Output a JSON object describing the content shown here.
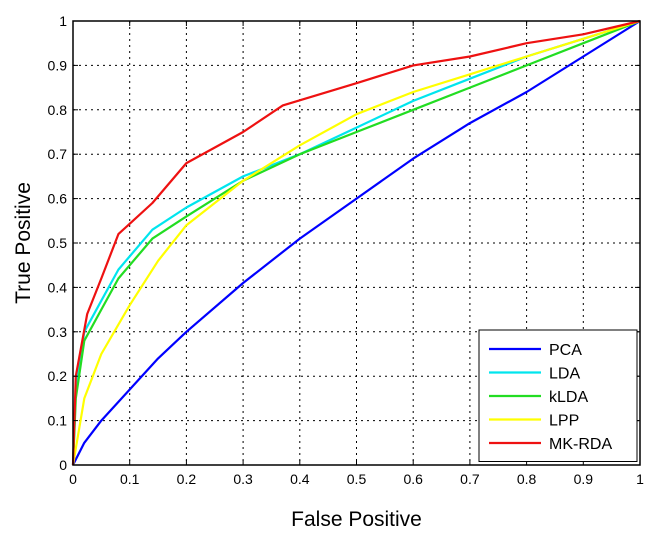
{
  "chart_data": {
    "type": "line",
    "xlabel": "False Positive",
    "ylabel": "True Positive",
    "xlim": [
      0,
      1
    ],
    "ylim": [
      0,
      1
    ],
    "x_ticks": [
      "0",
      "0.1",
      "0.2",
      "0.3",
      "0.4",
      "0.5",
      "0.6",
      "0.7",
      "0.8",
      "0.9",
      "1"
    ],
    "y_ticks": [
      "0",
      "0.1",
      "0.2",
      "0.3",
      "0.4",
      "0.5",
      "0.6",
      "0.7",
      "0.8",
      "0.9",
      "1"
    ],
    "grid": true,
    "legend_position": "bottom-right",
    "series": [
      {
        "name": "PCA",
        "color": "#0000ff",
        "points": [
          [
            0,
            0
          ],
          [
            0.02,
            0.05
          ],
          [
            0.05,
            0.1
          ],
          [
            0.1,
            0.17
          ],
          [
            0.15,
            0.24
          ],
          [
            0.2,
            0.3
          ],
          [
            0.3,
            0.41
          ],
          [
            0.4,
            0.51
          ],
          [
            0.5,
            0.6
          ],
          [
            0.6,
            0.69
          ],
          [
            0.7,
            0.77
          ],
          [
            0.8,
            0.84
          ],
          [
            0.9,
            0.92
          ],
          [
            1,
            1
          ]
        ]
      },
      {
        "name": "LDA",
        "color": "#00e5ee",
        "points": [
          [
            0,
            0
          ],
          [
            0.005,
            0.17
          ],
          [
            0.02,
            0.3
          ],
          [
            0.05,
            0.37
          ],
          [
            0.08,
            0.44
          ],
          [
            0.14,
            0.53
          ],
          [
            0.2,
            0.58
          ],
          [
            0.3,
            0.65
          ],
          [
            0.4,
            0.7
          ],
          [
            0.5,
            0.76
          ],
          [
            0.6,
            0.82
          ],
          [
            0.7,
            0.87
          ],
          [
            0.8,
            0.92
          ],
          [
            0.9,
            0.96
          ],
          [
            1,
            1
          ]
        ]
      },
      {
        "name": "kLDA",
        "color": "#22dd22",
        "points": [
          [
            0,
            0
          ],
          [
            0.005,
            0.15
          ],
          [
            0.02,
            0.28
          ],
          [
            0.05,
            0.35
          ],
          [
            0.08,
            0.42
          ],
          [
            0.14,
            0.51
          ],
          [
            0.2,
            0.56
          ],
          [
            0.3,
            0.64
          ],
          [
            0.4,
            0.7
          ],
          [
            0.5,
            0.75
          ],
          [
            0.6,
            0.8
          ],
          [
            0.7,
            0.85
          ],
          [
            0.8,
            0.9
          ],
          [
            0.9,
            0.95
          ],
          [
            1,
            1
          ]
        ]
      },
      {
        "name": "LPP",
        "color": "#ffff00",
        "points": [
          [
            0,
            0
          ],
          [
            0.02,
            0.15
          ],
          [
            0.05,
            0.25
          ],
          [
            0.1,
            0.36
          ],
          [
            0.15,
            0.46
          ],
          [
            0.2,
            0.54
          ],
          [
            0.3,
            0.64
          ],
          [
            0.4,
            0.72
          ],
          [
            0.5,
            0.79
          ],
          [
            0.6,
            0.84
          ],
          [
            0.7,
            0.88
          ],
          [
            0.8,
            0.92
          ],
          [
            0.9,
            0.96
          ],
          [
            1,
            1
          ]
        ]
      },
      {
        "name": "MK-RDA",
        "color": "#ee1111",
        "points": [
          [
            0,
            0
          ],
          [
            0.005,
            0.2
          ],
          [
            0.025,
            0.34
          ],
          [
            0.05,
            0.42
          ],
          [
            0.08,
            0.52
          ],
          [
            0.14,
            0.59
          ],
          [
            0.2,
            0.68
          ],
          [
            0.3,
            0.75
          ],
          [
            0.37,
            0.81
          ],
          [
            0.5,
            0.86
          ],
          [
            0.6,
            0.9
          ],
          [
            0.7,
            0.92
          ],
          [
            0.8,
            0.95
          ],
          [
            0.9,
            0.97
          ],
          [
            1,
            1
          ]
        ]
      }
    ]
  }
}
